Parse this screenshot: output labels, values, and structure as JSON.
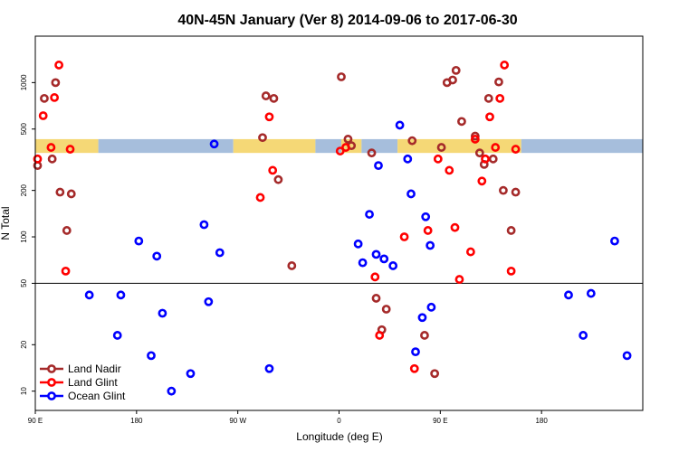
{
  "chart_data": {
    "type": "scatter",
    "title": "40N-45N January (Ver 8)   2014-09-06 to 2017-06-30",
    "xlabel": "Longitude (deg E)",
    "ylabel": "N Total",
    "x_scale": "continuous longitude, 90 E to 180 (one and a half wraps)",
    "xlim": [
      90,
      630
    ],
    "y_scale": "log",
    "ylim": [
      7.5,
      2000
    ],
    "grid": false,
    "legend_position": "bottom-left",
    "x_ticks": [
      {
        "value": 90,
        "label": "90 E"
      },
      {
        "value": 180,
        "label": "180"
      },
      {
        "value": 270,
        "label": "90 W"
      },
      {
        "value": 360,
        "label": "0"
      },
      {
        "value": 450,
        "label": "90 E"
      },
      {
        "value": 540,
        "label": "180"
      }
    ],
    "y_ticks": [
      {
        "value": 10,
        "label": "10"
      },
      {
        "value": 20,
        "label": "20"
      },
      {
        "value": 50,
        "label": "50"
      },
      {
        "value": 100,
        "label": "100"
      },
      {
        "value": 200,
        "label": "200"
      },
      {
        "value": 500,
        "label": "500"
      },
      {
        "value": 1000,
        "label": "1000"
      }
    ],
    "reference_line_y": 50,
    "band": {
      "y_low": 350,
      "y_high": 430,
      "land_color": "#f5d876",
      "ocean_color": "#a6bedc",
      "segments": [
        {
          "from": 90,
          "to": 146,
          "surface": "land"
        },
        {
          "from": 146,
          "to": 266,
          "surface": "ocean"
        },
        {
          "from": 266,
          "to": 339,
          "surface": "land"
        },
        {
          "from": 339,
          "to": 362,
          "surface": "ocean"
        },
        {
          "from": 362,
          "to": 380,
          "surface": "land"
        },
        {
          "from": 380,
          "to": 412,
          "surface": "ocean"
        },
        {
          "from": 412,
          "to": 522,
          "surface": "land"
        },
        {
          "from": 522,
          "to": 630,
          "surface": "ocean"
        }
      ]
    },
    "series": [
      {
        "name": "Land Nadir",
        "color": "#a52a2a",
        "points": [
          [
            92,
            290
          ],
          [
            98,
            790
          ],
          [
            105,
            320
          ],
          [
            108,
            1000
          ],
          [
            112,
            195
          ],
          [
            118,
            110
          ],
          [
            122,
            190
          ],
          [
            292,
            440
          ],
          [
            295,
            820
          ],
          [
            302,
            790
          ],
          [
            306,
            235
          ],
          [
            318,
            65
          ],
          [
            362,
            1090
          ],
          [
            368,
            430
          ],
          [
            371,
            390
          ],
          [
            389,
            350
          ],
          [
            393,
            40
          ],
          [
            398,
            25
          ],
          [
            402,
            34
          ],
          [
            425,
            420
          ],
          [
            436,
            23
          ],
          [
            445,
            13
          ],
          [
            451,
            380
          ],
          [
            456,
            1000
          ],
          [
            461,
            1040
          ],
          [
            464,
            1200
          ],
          [
            469,
            560
          ],
          [
            481,
            450
          ],
          [
            485,
            350
          ],
          [
            489,
            295
          ],
          [
            493,
            790
          ],
          [
            497,
            320
          ],
          [
            502,
            1010
          ],
          [
            506,
            200
          ],
          [
            513,
            110
          ],
          [
            517,
            195
          ]
        ]
      },
      {
        "name": "Land Glint",
        "color": "#ff0000",
        "points": [
          [
            92,
            320
          ],
          [
            97,
            610
          ],
          [
            104,
            380
          ],
          [
            107,
            800
          ],
          [
            111,
            1300
          ],
          [
            117,
            60
          ],
          [
            121,
            370
          ],
          [
            290,
            180
          ],
          [
            298,
            600
          ],
          [
            301,
            270
          ],
          [
            361,
            360
          ],
          [
            366,
            380
          ],
          [
            392,
            55
          ],
          [
            396,
            23
          ],
          [
            418,
            100
          ],
          [
            427,
            14
          ],
          [
            439,
            110
          ],
          [
            448,
            320
          ],
          [
            458,
            270
          ],
          [
            463,
            115
          ],
          [
            467,
            53
          ],
          [
            477,
            80
          ],
          [
            481,
            430
          ],
          [
            487,
            230
          ],
          [
            490,
            320
          ],
          [
            494,
            600
          ],
          [
            499,
            380
          ],
          [
            503,
            790
          ],
          [
            507,
            1300
          ],
          [
            513,
            60
          ],
          [
            517,
            370
          ]
        ]
      },
      {
        "name": "Ocean Glint",
        "color": "#0000ff",
        "points": [
          [
            138,
            42
          ],
          [
            163,
            23
          ],
          [
            166,
            42
          ],
          [
            182,
            94
          ],
          [
            193,
            17
          ],
          [
            198,
            75
          ],
          [
            203,
            32
          ],
          [
            211,
            10
          ],
          [
            228,
            13
          ],
          [
            240,
            120
          ],
          [
            244,
            38
          ],
          [
            249,
            400
          ],
          [
            254,
            79
          ],
          [
            298,
            14
          ],
          [
            377,
            90
          ],
          [
            381,
            68
          ],
          [
            387,
            140
          ],
          [
            393,
            77
          ],
          [
            395,
            290
          ],
          [
            400,
            72
          ],
          [
            408,
            65
          ],
          [
            414,
            530
          ],
          [
            421,
            320
          ],
          [
            424,
            190
          ],
          [
            428,
            18
          ],
          [
            434,
            30
          ],
          [
            437,
            135
          ],
          [
            441,
            88
          ],
          [
            442,
            35
          ],
          [
            564,
            42
          ],
          [
            577,
            23
          ],
          [
            584,
            43
          ],
          [
            605,
            94
          ],
          [
            616,
            17
          ]
        ]
      }
    ]
  }
}
